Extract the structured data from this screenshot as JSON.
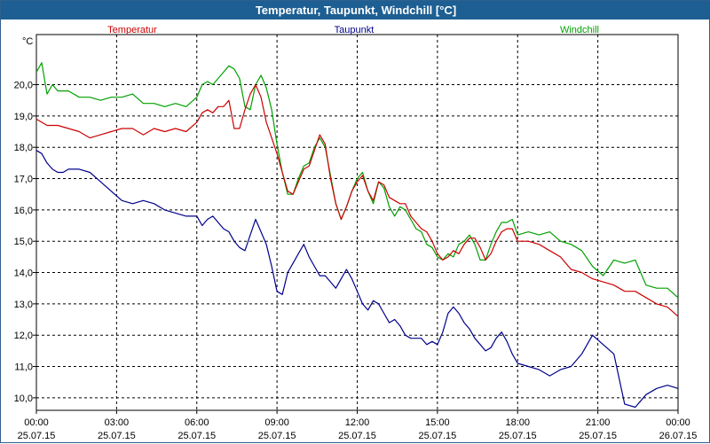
{
  "window": {
    "title": "Temperatur, Taupunkt, Windchill [°C]"
  },
  "chart_data": {
    "type": "line",
    "title": "Temperatur, Taupunkt, Windchill [°C]",
    "ylabel": "°C",
    "ylim": [
      9.6,
      21.6
    ],
    "yticks": [
      10,
      11,
      12,
      13,
      14,
      15,
      16,
      17,
      18,
      19,
      20
    ],
    "ytick_labels": [
      "10,0",
      "11,0",
      "12,0",
      "13,0",
      "14,0",
      "15,0",
      "16,0",
      "17,0",
      "18,0",
      "19,0",
      "20,0"
    ],
    "xlim": [
      0,
      24
    ],
    "xticks": [
      0,
      3,
      6,
      9,
      12,
      15,
      18,
      21,
      24
    ],
    "xtick_labels": [
      [
        "00:00",
        "25.07.15"
      ],
      [
        "03:00",
        "25.07.15"
      ],
      [
        "06:00",
        "25.07.15"
      ],
      [
        "09:00",
        "25.07.15"
      ],
      [
        "12:00",
        "25.07.15"
      ],
      [
        "15:00",
        "25.07.15"
      ],
      [
        "18:00",
        "25.07.15"
      ],
      [
        "21:00",
        "25.07.15"
      ],
      [
        "00:00",
        "26.07.15"
      ]
    ],
    "grid": true,
    "legend_position": "top",
    "series": [
      {
        "name": "Temperatur",
        "color": "#cc0000",
        "x": [
          0,
          0.4,
          0.8,
          1.2,
          1.6,
          2.0,
          2.4,
          2.8,
          3.2,
          3.6,
          4.0,
          4.4,
          4.8,
          5.2,
          5.6,
          6.0,
          6.2,
          6.4,
          6.6,
          6.8,
          7.0,
          7.2,
          7.4,
          7.6,
          7.8,
          8.0,
          8.2,
          8.4,
          8.6,
          8.8,
          9.0,
          9.2,
          9.4,
          9.6,
          9.8,
          10.0,
          10.2,
          10.4,
          10.6,
          10.8,
          11.0,
          11.2,
          11.4,
          11.6,
          11.8,
          12.0,
          12.2,
          12.4,
          12.6,
          12.8,
          13.0,
          13.2,
          13.4,
          13.6,
          13.8,
          14.0,
          14.2,
          14.4,
          14.6,
          14.8,
          15.0,
          15.2,
          15.4,
          15.6,
          15.8,
          16.0,
          16.2,
          16.4,
          16.6,
          16.8,
          17.0,
          17.2,
          17.4,
          17.6,
          17.8,
          18.0,
          18.4,
          18.8,
          19.2,
          19.6,
          20.0,
          20.4,
          20.8,
          21.2,
          21.6,
          22.0,
          22.4,
          22.8,
          23.2,
          23.6,
          24.0
        ],
        "values": [
          18.9,
          18.7,
          18.7,
          18.6,
          18.5,
          18.3,
          18.4,
          18.5,
          18.6,
          18.6,
          18.4,
          18.6,
          18.5,
          18.6,
          18.5,
          18.8,
          19.1,
          19.2,
          19.1,
          19.3,
          19.3,
          19.5,
          18.6,
          18.6,
          19.2,
          19.7,
          20.0,
          19.6,
          18.8,
          18.3,
          17.8,
          17.2,
          16.6,
          16.5,
          16.9,
          17.3,
          17.4,
          17.9,
          18.4,
          18.1,
          17.0,
          16.2,
          15.7,
          16.1,
          16.6,
          16.9,
          17.1,
          16.6,
          16.3,
          16.9,
          16.8,
          16.4,
          16.3,
          16.2,
          16.2,
          15.8,
          15.6,
          15.4,
          15.3,
          15.0,
          14.6,
          14.4,
          14.5,
          14.7,
          14.6,
          14.9,
          15.1,
          15.1,
          14.8,
          14.4,
          14.6,
          15.0,
          15.3,
          15.4,
          15.4,
          15.0,
          15.0,
          14.9,
          14.7,
          14.5,
          14.1,
          14.0,
          13.8,
          13.7,
          13.6,
          13.4,
          13.4,
          13.2,
          13.0,
          12.9,
          12.6
        ]
      },
      {
        "name": "Taupunkt",
        "color": "#00008b",
        "x": [
          0,
          0.2,
          0.4,
          0.6,
          0.8,
          1.0,
          1.2,
          1.6,
          2.0,
          2.4,
          2.8,
          3.2,
          3.6,
          4.0,
          4.4,
          4.8,
          5.2,
          5.6,
          6.0,
          6.2,
          6.4,
          6.6,
          6.8,
          7.0,
          7.2,
          7.4,
          7.6,
          7.8,
          8.0,
          8.2,
          8.4,
          8.6,
          8.8,
          9.0,
          9.2,
          9.4,
          9.6,
          9.8,
          10.0,
          10.2,
          10.4,
          10.6,
          10.8,
          11.0,
          11.2,
          11.4,
          11.6,
          11.8,
          12.0,
          12.2,
          12.4,
          12.6,
          12.8,
          13.0,
          13.2,
          13.4,
          13.6,
          13.8,
          14.0,
          14.2,
          14.4,
          14.6,
          14.8,
          15.0,
          15.2,
          15.4,
          15.6,
          15.8,
          16.0,
          16.2,
          16.4,
          16.6,
          16.8,
          17.0,
          17.2,
          17.4,
          17.6,
          17.8,
          18.0,
          18.4,
          18.8,
          19.2,
          19.6,
          20.0,
          20.4,
          20.8,
          21.2,
          21.6,
          22.0,
          22.4,
          22.8,
          23.2,
          23.6,
          24.0
        ],
        "values": [
          17.9,
          17.8,
          17.5,
          17.3,
          17.2,
          17.2,
          17.3,
          17.3,
          17.2,
          16.9,
          16.6,
          16.3,
          16.2,
          16.3,
          16.2,
          16.0,
          15.9,
          15.8,
          15.8,
          15.5,
          15.7,
          15.8,
          15.6,
          15.4,
          15.3,
          15.0,
          14.8,
          14.7,
          15.2,
          15.7,
          15.3,
          14.9,
          14.2,
          13.4,
          13.3,
          14.0,
          14.3,
          14.6,
          14.9,
          14.5,
          14.2,
          13.9,
          13.9,
          13.7,
          13.5,
          13.8,
          14.1,
          13.8,
          13.4,
          13.0,
          12.8,
          13.1,
          13.0,
          12.7,
          12.4,
          12.5,
          12.3,
          12.0,
          11.9,
          11.9,
          11.9,
          11.7,
          11.8,
          11.7,
          12.1,
          12.7,
          12.9,
          12.7,
          12.4,
          12.2,
          11.9,
          11.7,
          11.5,
          11.6,
          11.9,
          12.1,
          11.8,
          11.4,
          11.1,
          11.0,
          10.9,
          10.7,
          10.9,
          11.0,
          11.4,
          12.0,
          11.7,
          11.4,
          9.8,
          9.7,
          10.1,
          10.3,
          10.4,
          10.3
        ]
      },
      {
        "name": "Windchill",
        "color": "#00a000",
        "x": [
          0,
          0.2,
          0.4,
          0.6,
          0.8,
          1.2,
          1.6,
          2.0,
          2.4,
          2.8,
          3.2,
          3.6,
          4.0,
          4.4,
          4.8,
          5.2,
          5.6,
          6.0,
          6.2,
          6.4,
          6.6,
          6.8,
          7.0,
          7.2,
          7.4,
          7.6,
          7.8,
          8.0,
          8.2,
          8.4,
          8.6,
          8.8,
          9.0,
          9.2,
          9.4,
          9.6,
          9.8,
          10.0,
          10.2,
          10.4,
          10.6,
          10.8,
          11.0,
          11.2,
          11.4,
          11.6,
          11.8,
          12.0,
          12.2,
          12.4,
          12.6,
          12.8,
          13.0,
          13.2,
          13.4,
          13.6,
          13.8,
          14.0,
          14.2,
          14.4,
          14.6,
          14.8,
          15.0,
          15.2,
          15.4,
          15.6,
          15.8,
          16.0,
          16.2,
          16.4,
          16.6,
          16.8,
          17.0,
          17.2,
          17.4,
          17.6,
          17.8,
          18.0,
          18.4,
          18.8,
          19.2,
          19.6,
          20.0,
          20.4,
          20.8,
          21.2,
          21.6,
          22.0,
          22.4,
          22.8,
          23.2,
          23.6,
          24.0
        ],
        "values": [
          20.4,
          20.7,
          19.7,
          20.0,
          19.8,
          19.8,
          19.6,
          19.6,
          19.5,
          19.6,
          19.6,
          19.7,
          19.4,
          19.4,
          19.3,
          19.4,
          19.3,
          19.6,
          20.0,
          20.1,
          20.0,
          20.2,
          20.4,
          20.6,
          20.5,
          20.2,
          19.3,
          19.2,
          20.0,
          20.3,
          19.9,
          19.2,
          18.1,
          17.2,
          16.5,
          16.5,
          17.0,
          17.4,
          17.5,
          18.0,
          18.3,
          18.0,
          17.1,
          16.2,
          15.7,
          16.1,
          16.6,
          17.0,
          17.2,
          16.6,
          16.2,
          16.9,
          16.7,
          16.1,
          15.8,
          16.1,
          16.0,
          15.7,
          15.4,
          15.3,
          14.9,
          14.8,
          14.5,
          14.4,
          14.6,
          14.5,
          14.9,
          15.0,
          15.2,
          14.9,
          14.4,
          14.4,
          14.9,
          15.3,
          15.6,
          15.6,
          15.7,
          15.2,
          15.3,
          15.2,
          15.3,
          15.0,
          14.9,
          14.7,
          14.2,
          13.9,
          14.4,
          14.3,
          14.4,
          13.6,
          13.5,
          13.5,
          13.2
        ]
      }
    ]
  }
}
